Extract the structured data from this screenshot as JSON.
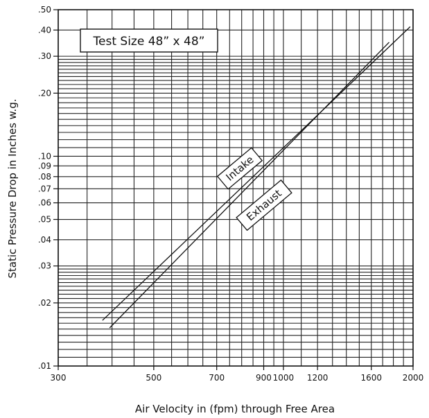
{
  "chart_data": {
    "type": "line",
    "xlabel": "Air Velocity in (fpm) through Free Area",
    "ylabel": "Static Pressure Drop in Inches w.g.",
    "xscale": "log",
    "yscale": "log",
    "xlim": [
      300,
      2000
    ],
    "ylim": [
      0.01,
      0.5
    ],
    "grid": true,
    "annotation": "Test Size 48” x 48”",
    "x_ticks": [
      {
        "value": 300,
        "label": "300"
      },
      {
        "value": 500,
        "label": "500"
      },
      {
        "value": 700,
        "label": "700"
      },
      {
        "value": 900,
        "label": "900"
      },
      {
        "value": 1000,
        "label": "1000"
      },
      {
        "value": 1200,
        "label": "1200"
      },
      {
        "value": 1600,
        "label": "1600"
      },
      {
        "value": 2000,
        "label": "2000"
      }
    ],
    "y_ticks": [
      {
        "value": 0.01,
        "label": ".01"
      },
      {
        "value": 0.02,
        "label": ".02"
      },
      {
        "value": 0.03,
        "label": ".03"
      },
      {
        "value": 0.04,
        "label": ".04"
      },
      {
        "value": 0.05,
        "label": ".05"
      },
      {
        "value": 0.06,
        "label": ".06"
      },
      {
        "value": 0.07,
        "label": ".07"
      },
      {
        "value": 0.08,
        "label": ".08"
      },
      {
        "value": 0.09,
        "label": ".09"
      },
      {
        "value": 0.1,
        "label": ".10"
      },
      {
        "value": 0.2,
        "label": ".20"
      },
      {
        "value": 0.3,
        "label": ".30"
      },
      {
        "value": 0.4,
        "label": ".40"
      },
      {
        "value": 0.5,
        "label": ".50"
      }
    ],
    "x_grid": [
      300,
      350,
      400,
      450,
      500,
      550,
      600,
      650,
      700,
      750,
      800,
      850,
      900,
      950,
      1000,
      1100,
      1200,
      1300,
      1400,
      1500,
      1600,
      1700,
      1800,
      1900,
      2000
    ],
    "y_grid": [
      0.01,
      0.011,
      0.012,
      0.013,
      0.014,
      0.015,
      0.016,
      0.017,
      0.018,
      0.019,
      0.02,
      0.021,
      0.022,
      0.023,
      0.024,
      0.025,
      0.026,
      0.027,
      0.028,
      0.029,
      0.03,
      0.04,
      0.05,
      0.06,
      0.07,
      0.08,
      0.09,
      0.1,
      0.11,
      0.12,
      0.13,
      0.14,
      0.15,
      0.16,
      0.17,
      0.18,
      0.19,
      0.2,
      0.21,
      0.22,
      0.23,
      0.24,
      0.25,
      0.26,
      0.27,
      0.28,
      0.29,
      0.3,
      0.4,
      0.5
    ],
    "series": [
      {
        "name": "Intake",
        "x": [
          380,
          1970
        ],
        "y": [
          0.0165,
          0.415
        ]
      },
      {
        "name": "Exhaust",
        "x": [
          395,
          1760
        ],
        "y": [
          0.0152,
          0.35
        ]
      }
    ]
  }
}
